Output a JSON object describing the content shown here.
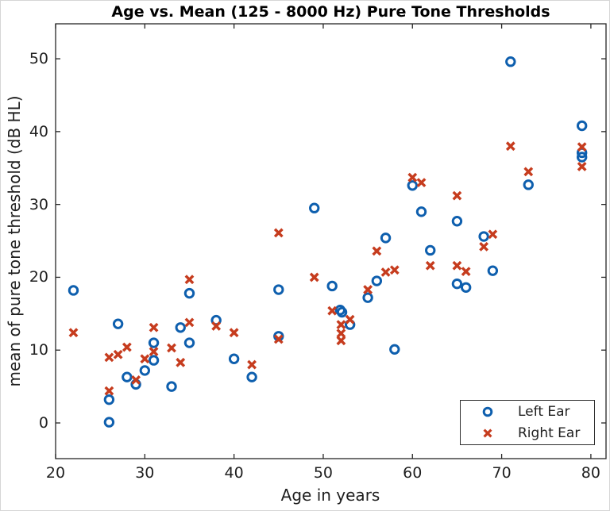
{
  "chart_data": {
    "type": "scatter",
    "title": "Age vs. Mean (125 - 8000 Hz) Pure Tone Thresholds",
    "xlabel": "Age in years",
    "ylabel": "mean of pure tone threshold (dB HL)",
    "xlim": [
      20,
      81.7
    ],
    "ylim": [
      -4.9,
      54.8
    ],
    "xticks": [
      20,
      30,
      40,
      50,
      60,
      70,
      80
    ],
    "yticks": [
      0,
      10,
      20,
      30,
      40,
      50
    ],
    "grid": false,
    "box": true,
    "tick_direction": "in",
    "legend_position": "lower right",
    "axis_color": "#262626",
    "background_color": "#ffffff",
    "series": [
      {
        "name": "Left Ear",
        "marker": "circle",
        "color": "#0E5FAE",
        "points": [
          [
            22,
            18.2
          ],
          [
            26,
            0.1
          ],
          [
            26,
            3.2
          ],
          [
            27,
            13.6
          ],
          [
            28,
            6.3
          ],
          [
            29,
            5.3
          ],
          [
            30,
            7.2
          ],
          [
            31,
            8.6
          ],
          [
            31,
            11
          ],
          [
            33,
            5
          ],
          [
            34,
            13.1
          ],
          [
            35,
            11
          ],
          [
            35,
            17.8
          ],
          [
            38,
            14.1
          ],
          [
            40,
            8.8
          ],
          [
            42,
            6.3
          ],
          [
            45,
            11.9
          ],
          [
            45,
            18.3
          ],
          [
            49,
            29.5
          ],
          [
            51,
            18.8
          ],
          [
            51.9,
            15.5
          ],
          [
            52.1,
            15.2
          ],
          [
            53,
            13.5
          ],
          [
            55,
            17.2
          ],
          [
            56,
            19.5
          ],
          [
            57,
            25.4
          ],
          [
            58,
            10.1
          ],
          [
            60,
            32.6
          ],
          [
            61,
            29
          ],
          [
            62,
            23.7
          ],
          [
            65,
            19.1
          ],
          [
            65,
            27.7
          ],
          [
            66,
            18.6
          ],
          [
            68,
            25.6
          ],
          [
            69,
            20.9
          ],
          [
            71,
            49.6
          ],
          [
            73,
            32.7
          ],
          [
            79,
            40.8
          ],
          [
            79,
            37.1
          ],
          [
            79,
            36.5
          ]
        ]
      },
      {
        "name": "Right Ear",
        "marker": "x",
        "color": "#C63C1E",
        "points": [
          [
            22,
            12.4
          ],
          [
            26,
            4.4
          ],
          [
            26,
            9
          ],
          [
            27,
            9.4
          ],
          [
            28,
            10.4
          ],
          [
            29,
            5.9
          ],
          [
            30,
            8.8
          ],
          [
            31,
            9.8
          ],
          [
            31,
            13.1
          ],
          [
            33,
            10.3
          ],
          [
            34,
            8.3
          ],
          [
            35,
            13.8
          ],
          [
            35,
            19.7
          ],
          [
            38,
            13.3
          ],
          [
            40,
            12.4
          ],
          [
            42,
            8
          ],
          [
            45,
            11.5
          ],
          [
            45,
            26.1
          ],
          [
            49,
            20
          ],
          [
            51,
            15.4
          ],
          [
            52,
            13.5
          ],
          [
            52,
            12.3
          ],
          [
            52,
            11.3
          ],
          [
            53,
            14.2
          ],
          [
            55,
            18.3
          ],
          [
            56,
            23.6
          ],
          [
            57,
            20.7
          ],
          [
            58,
            21
          ],
          [
            60,
            33.7
          ],
          [
            61,
            33
          ],
          [
            62,
            21.6
          ],
          [
            65,
            21.6
          ],
          [
            65,
            31.2
          ],
          [
            66,
            20.8
          ],
          [
            68,
            24.2
          ],
          [
            69,
            25.9
          ],
          [
            71,
            38
          ],
          [
            73,
            34.5
          ],
          [
            79,
            37.9
          ],
          [
            79,
            35.2
          ]
        ]
      }
    ]
  }
}
